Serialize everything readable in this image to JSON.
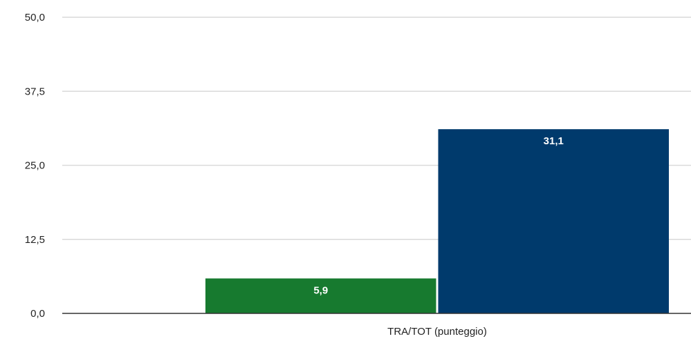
{
  "chart_data": {
    "type": "bar",
    "title": "",
    "xlabel": "",
    "ylabel": "",
    "categories": [
      "TRA/TOT (punteggio)"
    ],
    "series": [
      {
        "values": [
          5.9
        ],
        "color": "#177a2f",
        "label": "5,9"
      },
      {
        "values": [
          31.1
        ],
        "color": "#003a6c",
        "label": "31,1"
      }
    ],
    "ylim": [
      0,
      50
    ],
    "yticks": [
      {
        "value": 0,
        "label": "0,0"
      },
      {
        "value": 12.5,
        "label": "12,5"
      },
      {
        "value": 25,
        "label": "25,0"
      },
      {
        "value": 37.5,
        "label": "37,5"
      },
      {
        "value": 50,
        "label": "50,0"
      }
    ],
    "grid": true,
    "legend": "none"
  }
}
